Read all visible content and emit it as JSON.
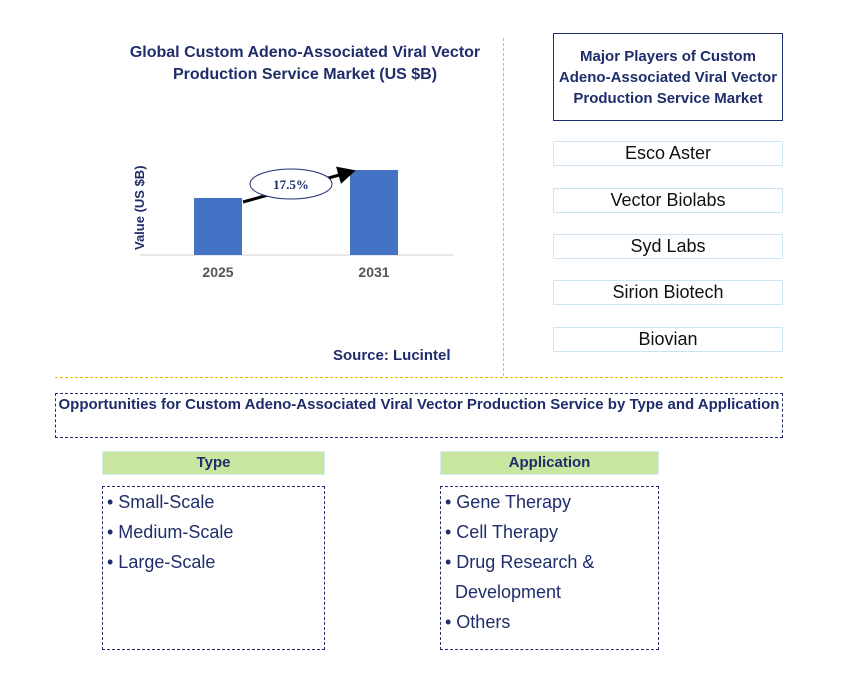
{
  "chart_data": {
    "type": "bar",
    "title": "Global Custom Adeno-Associated Viral Vector Production Service Market (US $B)",
    "ylabel": "Value (US $B)",
    "categories": [
      "2025",
      "2031"
    ],
    "values": [
      1.0,
      1.49
    ],
    "annotation": "17.5%",
    "bar_color": "#4472c4",
    "grid": false
  },
  "source": "Source: Lucintel",
  "players": {
    "title": "Major Players of Custom Adeno-Associated Viral Vector Production Service Market",
    "items": [
      "Esco Aster",
      "Vector Biolabs",
      "Syd Labs",
      "Sirion Biotech",
      "Biovian"
    ]
  },
  "opportunities": {
    "title": "Opportunities for Custom Adeno-Associated Viral Vector Production Service by Type and Application",
    "type": {
      "header": "Type",
      "items": [
        "• Small-Scale",
        "• Medium-Scale",
        "• Large-Scale"
      ]
    },
    "application": {
      "header": "Application",
      "items": [
        "• Gene Therapy",
        "• Cell Therapy",
        "• Drug Research &",
        "  Development",
        "• Others"
      ]
    }
  }
}
